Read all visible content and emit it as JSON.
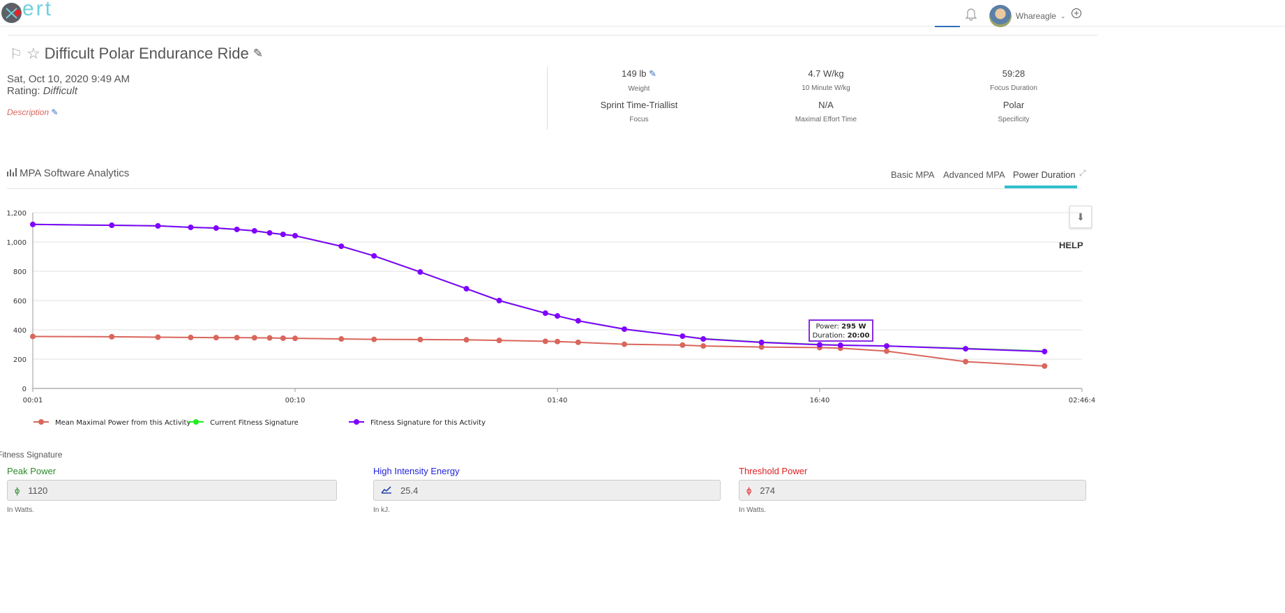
{
  "header": {
    "logo_text": "ert",
    "username": "Whareagle"
  },
  "activity": {
    "title": "Difficult Polar Endurance Ride",
    "datetime": "Sat, Oct 10, 2020 9:49 AM",
    "rating_label": "Rating:",
    "rating_value": "Difficult",
    "description_label": "Description"
  },
  "stats": [
    {
      "value": "149 lb",
      "label": "Weight"
    },
    {
      "value": "4.7 W/kg",
      "label": "10 Minute W/kg"
    },
    {
      "value": "59:28",
      "label": "Focus Duration"
    },
    {
      "value": "Sprint Time-Triallist",
      "label": "Focus"
    },
    {
      "value": "N/A",
      "label": "Maximal Effort Time"
    },
    {
      "value": "Polar",
      "label": "Specificity"
    }
  ],
  "analytics": {
    "title": "MPA Software Analytics",
    "tabs": [
      {
        "label": "Basic MPA"
      },
      {
        "label": "Advanced MPA"
      },
      {
        "label": "Power Duration",
        "active": true
      }
    ],
    "help": "HELP",
    "accent": "#2fc0cc"
  },
  "tooltip": {
    "power_label": "Power:",
    "power_value": "295 W",
    "duration_label": "Duration:",
    "duration_value": "20:00"
  },
  "chart_data": {
    "type": "line",
    "x_scale": "log",
    "x_unit": "seconds",
    "xlim": [
      1,
      10000
    ],
    "ylim": [
      0,
      1200
    ],
    "x_ticks": [
      {
        "value": 1,
        "label": "00:01"
      },
      {
        "value": 10,
        "label": "00:10"
      },
      {
        "value": 100,
        "label": "01:40"
      },
      {
        "value": 1000,
        "label": "16:40"
      },
      {
        "value": 10000,
        "label": "02:46:4"
      }
    ],
    "y_ticks": [
      {
        "value": 0,
        "label": "0"
      },
      {
        "value": 200,
        "label": "200"
      },
      {
        "value": 400,
        "label": "400"
      },
      {
        "value": 600,
        "label": "600"
      },
      {
        "value": 800,
        "label": "800"
      },
      {
        "value": 1000,
        "label": "1,000"
      },
      {
        "value": 1200,
        "label": "1,200"
      }
    ],
    "grid": true,
    "legend": "bottom",
    "x": [
      1,
      2,
      3,
      4,
      5,
      6,
      7,
      8,
      9,
      10,
      15,
      20,
      30,
      45,
      60,
      90,
      100,
      120,
      180,
      300,
      360,
      600,
      1000,
      1200,
      1800,
      3600,
      7200
    ],
    "series": [
      {
        "name": "Mean Maximal Power from this Activity",
        "color": "#d9665c",
        "values": [
          355,
          353,
          350,
          348,
          347,
          347,
          346,
          345,
          343,
          342,
          338,
          335,
          334,
          332,
          328,
          322,
          320,
          315,
          302,
          296,
          290,
          283,
          279,
          275,
          255,
          183,
          153
        ]
      },
      {
        "name": "Current Fitness Signature",
        "color": "#22ee22",
        "values": [
          1120,
          1114,
          1110,
          1100,
          1095,
          1086,
          1076,
          1062,
          1052,
          1043,
          971,
          905,
          795,
          681,
          600,
          514,
          495,
          462,
          405,
          357,
          340,
          316,
          300,
          295,
          290,
          273,
          255
        ]
      },
      {
        "name": "Fitness Signature for this Activity",
        "color": "#8000ff",
        "values": [
          1120,
          1114,
          1110,
          1100,
          1095,
          1086,
          1076,
          1062,
          1052,
          1043,
          971,
          905,
          795,
          681,
          600,
          514,
          495,
          462,
          405,
          357,
          338,
          314,
          298,
          295,
          290,
          271,
          252
        ]
      }
    ]
  },
  "fitness_signature": {
    "title": "Fitness Signature",
    "fields": [
      {
        "label": "Peak Power",
        "value": "1120",
        "hint": "In Watts.",
        "color": "#2a8a2a"
      },
      {
        "label": "High Intensity Energy",
        "value": "25.4",
        "hint": "In kJ.",
        "color": "#2222dd"
      },
      {
        "label": "Threshold Power",
        "value": "274",
        "hint": "In Watts.",
        "color": "#e02020"
      }
    ]
  }
}
